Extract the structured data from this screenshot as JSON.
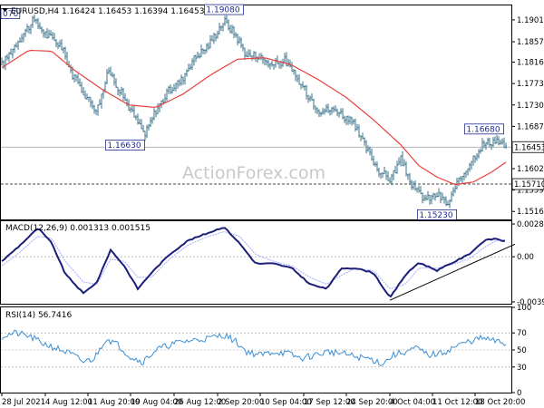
{
  "chart_data": [
    {
      "type": "line",
      "panel": "price",
      "header": "EURUSD,H4  1.16424 1.16453 1.16394 1.16453",
      "watermark": "ActionForex.com",
      "ylim": [
        1.15,
        1.193
      ],
      "y_ticks": [
        "1.19010",
        "1.18570",
        "1.18160",
        "1.17730",
        "1.17300",
        "1.16870",
        "1.16020",
        "1.15590",
        "1.15160"
      ],
      "y_tick_values": [
        1.1901,
        1.1857,
        1.1816,
        1.1773,
        1.173,
        1.1687,
        1.1602,
        1.1559,
        1.1516
      ],
      "last_price_label": "1.16453",
      "last_price": 1.16453,
      "support_label": "1.15710",
      "support_level": 1.1571,
      "annotations": [
        {
          "text": "1.19080",
          "x": 245,
          "y": 1.1908
        },
        {
          "text": "1.16630",
          "x": 136,
          "y": 1.1663
        },
        {
          "text": "1.16680",
          "x": 532,
          "y": 1.1668
        },
        {
          "text": "1.15230",
          "x": 480,
          "y": 1.1523
        },
        {
          "text": "070",
          "x": 0,
          "y": 1.19
        }
      ],
      "close_series_anchors": [
        [
          0,
          1.181
        ],
        [
          18,
          1.186
        ],
        [
          35,
          1.19
        ],
        [
          50,
          1.187
        ],
        [
          65,
          1.185
        ],
        [
          78,
          1.179
        ],
        [
          92,
          1.175
        ],
        [
          105,
          1.172
        ],
        [
          118,
          1.18
        ],
        [
          130,
          1.176
        ],
        [
          145,
          1.171
        ],
        [
          158,
          1.167
        ],
        [
          170,
          1.172
        ],
        [
          185,
          1.176
        ],
        [
          198,
          1.178
        ],
        [
          210,
          1.182
        ],
        [
          228,
          1.185
        ],
        [
          245,
          1.19
        ],
        [
          258,
          1.187
        ],
        [
          270,
          1.183
        ],
        [
          282,
          1.183
        ],
        [
          298,
          1.181
        ],
        [
          312,
          1.182
        ],
        [
          330,
          1.177
        ],
        [
          350,
          1.172
        ],
        [
          370,
          1.172
        ],
        [
          388,
          1.169
        ],
        [
          400,
          1.165
        ],
        [
          415,
          1.16
        ],
        [
          428,
          1.158
        ],
        [
          440,
          1.162
        ],
        [
          455,
          1.156
        ],
        [
          468,
          1.154
        ],
        [
          480,
          1.155
        ],
        [
          492,
          1.153
        ],
        [
          505,
          1.158
        ],
        [
          518,
          1.162
        ],
        [
          530,
          1.165
        ],
        [
          545,
          1.166
        ],
        [
          556,
          1.1645
        ]
      ],
      "ma_series_anchors": [
        [
          0,
          1.1805
        ],
        [
          30,
          1.184
        ],
        [
          55,
          1.1838
        ],
        [
          80,
          1.18
        ],
        [
          110,
          1.1762
        ],
        [
          140,
          1.173
        ],
        [
          170,
          1.1725
        ],
        [
          200,
          1.1752
        ],
        [
          230,
          1.179
        ],
        [
          260,
          1.1822
        ],
        [
          290,
          1.1825
        ],
        [
          320,
          1.181
        ],
        [
          350,
          1.178
        ],
        [
          380,
          1.1745
        ],
        [
          410,
          1.17
        ],
        [
          440,
          1.165
        ],
        [
          460,
          1.1608
        ],
        [
          480,
          1.1585
        ],
        [
          500,
          1.157
        ],
        [
          520,
          1.1575
        ],
        [
          540,
          1.1595
        ],
        [
          556,
          1.1615
        ]
      ]
    },
    {
      "type": "line",
      "panel": "macd",
      "header": "MACD(12,26,9) 0.001313 0.001515",
      "ylim": [
        -0.0041,
        0.0031
      ],
      "y_ticks": [
        "0.002861",
        "0.00",
        "-0.00394"
      ],
      "y_tick_values": [
        0.002861,
        0.0,
        -0.00394
      ],
      "macd_anchors": [
        [
          0,
          -0.0004
        ],
        [
          20,
          0.001
        ],
        [
          40,
          0.0025
        ],
        [
          55,
          0.0012
        ],
        [
          70,
          -0.0015
        ],
        [
          90,
          -0.0032
        ],
        [
          105,
          -0.0022
        ],
        [
          120,
          0.0006
        ],
        [
          135,
          -0.0008
        ],
        [
          150,
          -0.0028
        ],
        [
          165,
          -0.0014
        ],
        [
          185,
          0.0002
        ],
        [
          205,
          0.0014
        ],
        [
          225,
          0.002
        ],
        [
          245,
          0.0026
        ],
        [
          262,
          0.0012
        ],
        [
          280,
          -0.0006
        ],
        [
          300,
          -0.0006
        ],
        [
          320,
          -0.001
        ],
        [
          340,
          -0.0024
        ],
        [
          358,
          -0.0028
        ],
        [
          375,
          -0.001
        ],
        [
          390,
          -0.001
        ],
        [
          410,
          -0.0014
        ],
        [
          428,
          -0.0036
        ],
        [
          445,
          -0.0016
        ],
        [
          460,
          -0.0005
        ],
        [
          480,
          -0.0012
        ],
        [
          500,
          -0.0004
        ],
        [
          515,
          0.0002
        ],
        [
          532,
          0.0014
        ],
        [
          545,
          0.0016
        ],
        [
          556,
          0.0013
        ]
      ],
      "signal_anchors": [
        [
          0,
          -0.0008
        ],
        [
          20,
          0.0004
        ],
        [
          40,
          0.0018
        ],
        [
          55,
          0.0016
        ],
        [
          70,
          -0.0004
        ],
        [
          90,
          -0.0022
        ],
        [
          105,
          -0.0024
        ],
        [
          120,
          -0.0002
        ],
        [
          135,
          -0.0004
        ],
        [
          150,
          -0.0018
        ],
        [
          165,
          -0.0018
        ],
        [
          185,
          -0.0002
        ],
        [
          205,
          0.001
        ],
        [
          225,
          0.0017
        ],
        [
          245,
          0.0022
        ],
        [
          262,
          0.0018
        ],
        [
          280,
          0.0002
        ],
        [
          300,
          -0.0004
        ],
        [
          320,
          -0.0008
        ],
        [
          340,
          -0.0018
        ],
        [
          358,
          -0.0024
        ],
        [
          375,
          -0.0016
        ],
        [
          390,
          -0.001
        ],
        [
          410,
          -0.0012
        ],
        [
          428,
          -0.0028
        ],
        [
          445,
          -0.0024
        ],
        [
          460,
          -0.001
        ],
        [
          480,
          -0.001
        ],
        [
          500,
          -0.0006
        ],
        [
          515,
          -0.0002
        ],
        [
          532,
          0.0008
        ],
        [
          545,
          0.0014
        ],
        [
          556,
          0.0015
        ]
      ],
      "trendline": [
        [
          428,
          -0.0038
        ],
        [
          566,
          0.0011
        ]
      ]
    },
    {
      "type": "line",
      "panel": "rsi",
      "header": "RSI(14) 56.7416",
      "ylim": [
        0,
        100
      ],
      "y_ticks": [
        "100",
        "70",
        "50",
        "30",
        "0"
      ],
      "y_tick_values": [
        100,
        70,
        50,
        30,
        0
      ],
      "rsi_anchors": [
        [
          0,
          66
        ],
        [
          15,
          70
        ],
        [
          30,
          66
        ],
        [
          45,
          58
        ],
        [
          60,
          52
        ],
        [
          75,
          46
        ],
        [
          90,
          36
        ],
        [
          102,
          40
        ],
        [
          115,
          64
        ],
        [
          128,
          56
        ],
        [
          142,
          42
        ],
        [
          155,
          36
        ],
        [
          170,
          50
        ],
        [
          185,
          56
        ],
        [
          200,
          60
        ],
        [
          215,
          62
        ],
        [
          230,
          64
        ],
        [
          245,
          68
        ],
        [
          258,
          60
        ],
        [
          270,
          48
        ],
        [
          285,
          44
        ],
        [
          300,
          48
        ],
        [
          315,
          46
        ],
        [
          330,
          40
        ],
        [
          345,
          44
        ],
        [
          360,
          48
        ],
        [
          375,
          46
        ],
        [
          390,
          42
        ],
        [
          405,
          40
        ],
        [
          420,
          34
        ],
        [
          432,
          44
        ],
        [
          445,
          48
        ],
        [
          458,
          52
        ],
        [
          470,
          44
        ],
        [
          485,
          46
        ],
        [
          500,
          54
        ],
        [
          515,
          60
        ],
        [
          530,
          64
        ],
        [
          545,
          60
        ],
        [
          556,
          57
        ]
      ]
    },
    {
      "type": "table",
      "panel": "x_axis",
      "x_tick_labels": [
        "28 Jul 2021",
        "4 Aug 12:00",
        "11 Aug 20:00",
        "19 Aug 04:00",
        "26 Aug 12:00",
        "2 Sep 20:00",
        "10 Sep 04:00",
        "17 Sep 12:00",
        "24 Sep 20:00",
        "4 Oct 04:00",
        "11 Oct 12:00",
        "18 Oct 20:00"
      ],
      "x_tick_positions": [
        0,
        48,
        95,
        142,
        190,
        238,
        285,
        333,
        380,
        428,
        475,
        522
      ]
    }
  ],
  "colors": {
    "price": "#4a7f94",
    "ma": "#e8413c",
    "macd": "#1b1f7a",
    "macd_signal": "#a8a8ff",
    "rsi": "#3b8fd6",
    "grid": "#9a9a9a",
    "annotation": "#1f2a8f",
    "watermark": "#c9c9c9"
  }
}
